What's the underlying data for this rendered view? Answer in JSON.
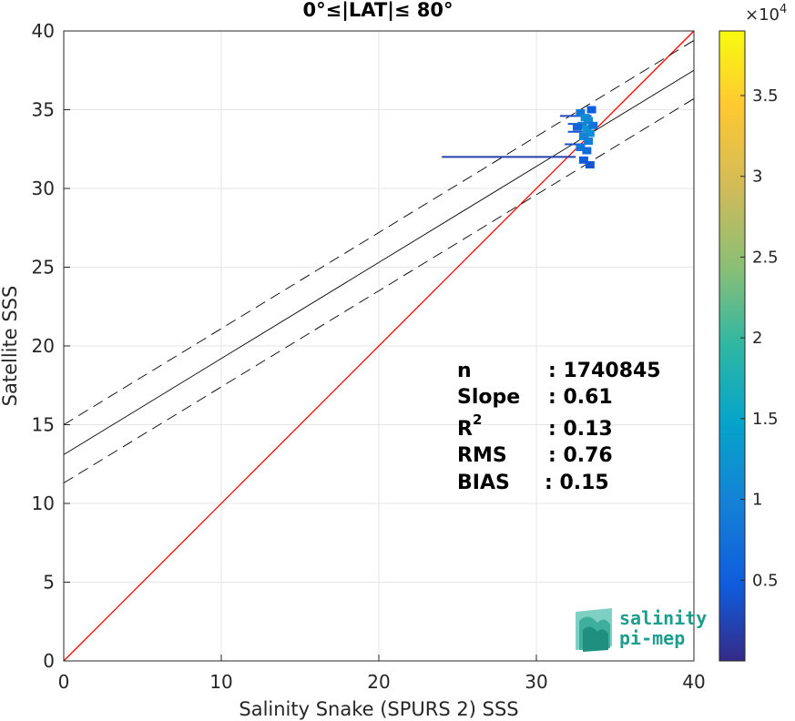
{
  "chart_data": {
    "type": "scatter",
    "title": "0°≤|LAT|≤ 80°",
    "xlabel": "Salinity Snake (SPURS 2) SSS",
    "ylabel": "Satellite SSS",
    "xlim": [
      0,
      40
    ],
    "ylim": [
      0,
      40
    ],
    "xticks": [
      "0",
      "10",
      "20",
      "30",
      "40"
    ],
    "yticks": [
      "0",
      "5",
      "10",
      "15",
      "20",
      "25",
      "30",
      "35",
      "40"
    ],
    "grid": true,
    "colorbar": {
      "range": [
        0,
        3.9
      ],
      "ticks": [
        "0.5",
        "1",
        "1.5",
        "2",
        "2.5",
        "3",
        "3.5"
      ],
      "exponent_label": "×10",
      "exponent": "4"
    },
    "lines": [
      {
        "name": "1:1",
        "x": [
          0,
          40
        ],
        "y": [
          0,
          40
        ],
        "color": "#ff0000",
        "style": "solid"
      },
      {
        "name": "regression",
        "x": [
          0,
          40
        ],
        "y": [
          13.1,
          37.5
        ],
        "color": "#000000",
        "style": "solid"
      },
      {
        "name": "upper",
        "x": [
          0,
          40
        ],
        "y": [
          15.0,
          39.4
        ],
        "color": "#000000",
        "style": "dashed"
      },
      {
        "name": "lower",
        "x": [
          0,
          40
        ],
        "y": [
          11.3,
          35.7
        ],
        "color": "#000000",
        "style": "dashed"
      }
    ],
    "density_points": [
      {
        "x": 24.0,
        "y": 32.0,
        "x2": 32.5,
        "c": 0.05
      },
      {
        "x": 31.5,
        "y": 34.6,
        "x2": 33.5,
        "c": 0.08
      },
      {
        "x": 32.0,
        "y": 34.1,
        "x2": 33.0,
        "c": 0.1
      },
      {
        "x": 32.0,
        "y": 33.6,
        "x2": 33.2,
        "c": 0.1
      },
      {
        "x": 31.8,
        "y": 32.8,
        "x2": 33.0,
        "c": 0.08
      },
      {
        "x": 32.8,
        "y": 34.8,
        "c": 0.22
      },
      {
        "x": 33.1,
        "y": 34.5,
        "c": 0.3
      },
      {
        "x": 33.3,
        "y": 34.3,
        "c": 0.28
      },
      {
        "x": 32.9,
        "y": 34.0,
        "c": 0.25
      },
      {
        "x": 33.2,
        "y": 33.8,
        "c": 0.32
      },
      {
        "x": 33.4,
        "y": 33.5,
        "c": 0.3
      },
      {
        "x": 33.0,
        "y": 33.3,
        "c": 0.26
      },
      {
        "x": 33.3,
        "y": 33.0,
        "c": 0.24
      },
      {
        "x": 32.8,
        "y": 32.6,
        "c": 0.2
      },
      {
        "x": 33.2,
        "y": 32.4,
        "c": 0.18
      },
      {
        "x": 33.0,
        "y": 31.8,
        "c": 0.12
      },
      {
        "x": 33.4,
        "y": 31.5,
        "c": 0.1
      },
      {
        "x": 33.5,
        "y": 35.0,
        "c": 0.12
      },
      {
        "x": 33.6,
        "y": 34.0,
        "c": 0.2
      },
      {
        "x": 32.6,
        "y": 33.9,
        "c": 0.15
      }
    ],
    "annotations": {
      "n_label": "n",
      "n_value": ": 1740845",
      "slope_label": "Slope",
      "slope_value": ": 0.61",
      "r2_label": "R",
      "r2_sup": "2",
      "r2_value": ": 0.13",
      "rms_label": "RMS",
      "rms_value": ": 0.76",
      "bias_label": "BIAS",
      "bias_value": ": 0.15"
    }
  },
  "logo": {
    "line1": "salinity",
    "line2": "pi-mep"
  }
}
